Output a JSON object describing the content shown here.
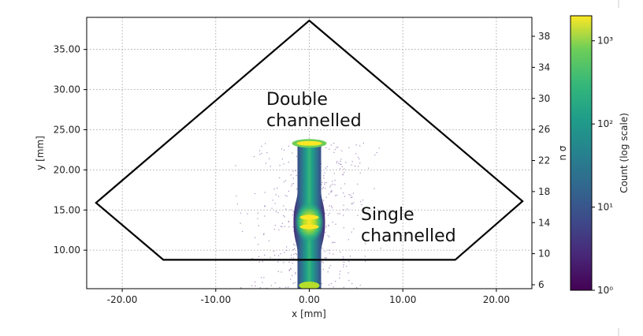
{
  "chart_data": {
    "type": "heatmap",
    "title": "",
    "xlabel": "x [mm]",
    "ylabel": "y [mm]",
    "y2label": "n σ",
    "xlim": [
      -23.8,
      23.8
    ],
    "ylim": [
      5.2,
      39.0
    ],
    "x_ticks": [
      -20,
      -10,
      0,
      10,
      20
    ],
    "x_tick_labels": [
      "-20.00",
      "-10.00",
      "0.00",
      "10.00",
      "20.00"
    ],
    "y_ticks": [
      10,
      15,
      20,
      25,
      30,
      35
    ],
    "y_tick_labels": [
      "10.00",
      "15.00",
      "20.00",
      "25.00",
      "30.00",
      "35.00"
    ],
    "y2_ticks": [
      6,
      10,
      14,
      18,
      22,
      26,
      30,
      34,
      38
    ],
    "y2_tick_labels": [
      "6",
      "10",
      "14",
      "18",
      "22",
      "26",
      "30",
      "34",
      "38"
    ],
    "grid": true,
    "colormap": "viridis",
    "colorbar": {
      "label": "Count (log scale)",
      "scale": "log",
      "range": [
        1,
        2000
      ],
      "ticks": [
        1,
        10,
        100,
        1000
      ],
      "tick_labels": [
        "10⁰",
        "10¹",
        "10²",
        "10³"
      ]
    },
    "boundary_polygon": {
      "points": [
        [
          -22.8,
          15.9
        ],
        [
          0.0,
          38.6
        ],
        [
          22.8,
          16.1
        ],
        [
          15.6,
          8.8
        ],
        [
          -15.6,
          8.8
        ]
      ]
    },
    "annotations": [
      {
        "lines": [
          "Double",
          "channelled"
        ]
      },
      {
        "lines": [
          "Single",
          "channelled"
        ]
      }
    ],
    "beam": {
      "x_center": 0.0,
      "y_range": [
        5.2,
        23.6
      ],
      "dense_regions_y": [
        13.5,
        23.3
      ]
    }
  }
}
